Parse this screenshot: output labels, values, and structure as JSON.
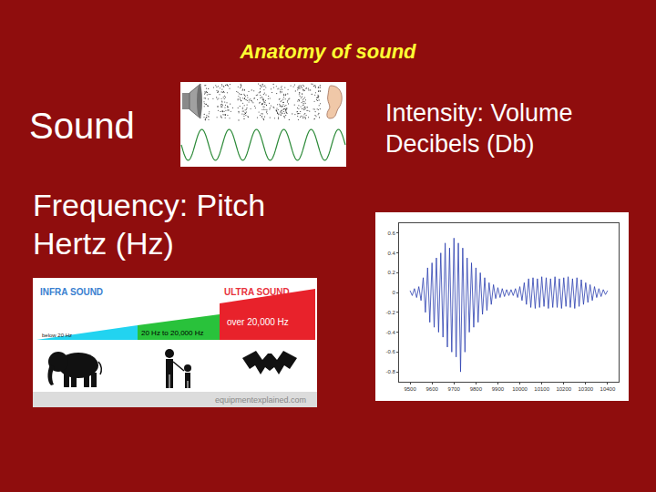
{
  "title": "Anatomy of sound",
  "sound": {
    "label": "Sound"
  },
  "intensity": {
    "lines": [
      "Intensity: Volume",
      "Decibels (Db)"
    ]
  },
  "frequency": {
    "lines": [
      "Frequency: Pitch",
      "Hertz (Hz)"
    ],
    "graphic": {
      "left_title": "INFRA SOUND",
      "right_title": "ULTRA SOUND",
      "bands": [
        "below 20 Hz",
        "20 Hz to 20,000 Hz",
        "over 20,000 Hz"
      ],
      "credit": "equipmentexplained.com"
    }
  },
  "chart_data": {
    "type": "line",
    "color": "#2b3fb0",
    "grid": false,
    "x": [
      9500,
      9510,
      9520,
      9530,
      9540,
      9550,
      9560,
      9570,
      9580,
      9590,
      9600,
      9610,
      9620,
      9630,
      9640,
      9650,
      9660,
      9670,
      9680,
      9690,
      9700,
      9710,
      9720,
      9730,
      9740,
      9750,
      9760,
      9770,
      9780,
      9790,
      9800,
      9810,
      9820,
      9830,
      9840,
      9850,
      9860,
      9870,
      9880,
      9890,
      9900,
      9910,
      9920,
      9930,
      9940,
      9950,
      9960,
      9970,
      9980,
      9990,
      10000,
      10010,
      10020,
      10030,
      10040,
      10050,
      10060,
      10070,
      10080,
      10090,
      10100,
      10110,
      10120,
      10130,
      10140,
      10150,
      10160,
      10170,
      10180,
      10190,
      10200,
      10210,
      10220,
      10230,
      10240,
      10250,
      10260,
      10270,
      10280,
      10290,
      10300,
      10310,
      10320,
      10330,
      10340,
      10350,
      10360,
      10370,
      10380,
      10390,
      10400
    ],
    "values": [
      0.02,
      -0.03,
      0.04,
      -0.05,
      0.06,
      -0.08,
      0.15,
      -0.2,
      0.25,
      -0.3,
      0.3,
      -0.35,
      0.35,
      -0.4,
      0.4,
      -0.45,
      0.5,
      -0.55,
      0.45,
      -0.6,
      0.55,
      -0.65,
      0.5,
      -0.8,
      0.45,
      -0.6,
      0.35,
      -0.4,
      0.3,
      -0.35,
      0.25,
      -0.3,
      0.2,
      -0.22,
      0.15,
      -0.18,
      0.1,
      -0.12,
      0.08,
      -0.06,
      0.05,
      -0.05,
      0.04,
      -0.04,
      0.03,
      -0.03,
      0.03,
      -0.03,
      0.04,
      -0.05,
      0.06,
      -0.08,
      0.1,
      -0.12,
      0.14,
      -0.15,
      0.15,
      -0.16,
      0.14,
      -0.15,
      0.16,
      -0.14,
      0.15,
      -0.16,
      0.14,
      -0.15,
      0.16,
      -0.15,
      0.14,
      -0.16,
      0.15,
      -0.14,
      0.16,
      -0.15,
      0.14,
      -0.16,
      0.15,
      -0.14,
      0.13,
      -0.12,
      0.1,
      -0.1,
      0.08,
      -0.08,
      0.06,
      -0.05,
      0.04,
      -0.04,
      0.03,
      -0.02,
      0.02
    ],
    "xlim": [
      9450,
      10450
    ],
    "xticks": [
      9500,
      9600,
      9700,
      9800,
      9900,
      10000,
      10100,
      10200,
      10300,
      10400
    ],
    "ylim": [
      -0.9,
      0.7
    ],
    "yticks": [
      -0.8,
      -0.6,
      -0.4,
      -0.2,
      0,
      0.2,
      0.4,
      0.6
    ]
  }
}
